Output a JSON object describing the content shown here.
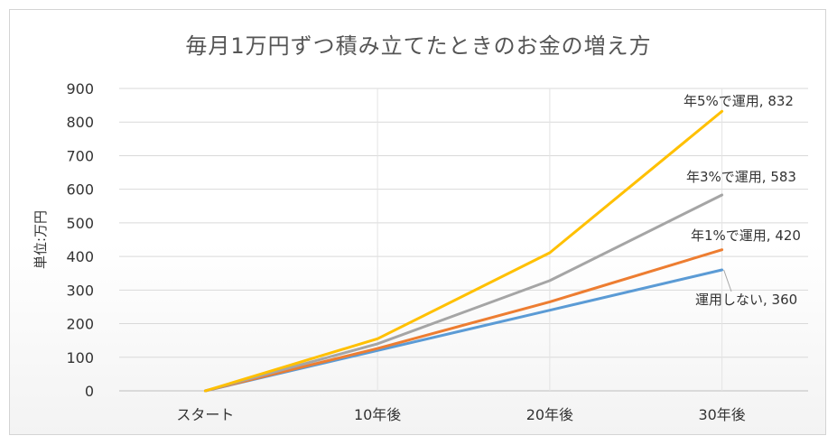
{
  "chart_data": {
    "type": "line",
    "title": "毎月1万円ずつ積み立てたときのお金の増え方",
    "ylabel": "単位:万円",
    "xlabel": "",
    "categories": [
      "スタート",
      "10年後",
      "20年後",
      "30年後"
    ],
    "ylim": [
      0,
      900
    ],
    "yticks": [
      0,
      100,
      200,
      300,
      400,
      500,
      600,
      700,
      800,
      900
    ],
    "grid": true,
    "series": [
      {
        "name": "運用しない",
        "values": [
          0,
          120,
          240,
          360
        ],
        "color": "#5b9bd5",
        "label": "運用しない, 360"
      },
      {
        "name": "年1%で運用",
        "values": [
          0,
          126,
          265,
          420
        ],
        "color": "#ed7d31",
        "label": "年1%で運用, 420"
      },
      {
        "name": "年3%で運用",
        "values": [
          0,
          140,
          328,
          583
        ],
        "color": "#a5a5a5",
        "label": "年3%で運用, 583"
      },
      {
        "name": "年5%で運用",
        "values": [
          0,
          155,
          411,
          832
        ],
        "color": "#ffc000",
        "label": "年5%で運用, 832"
      }
    ]
  }
}
